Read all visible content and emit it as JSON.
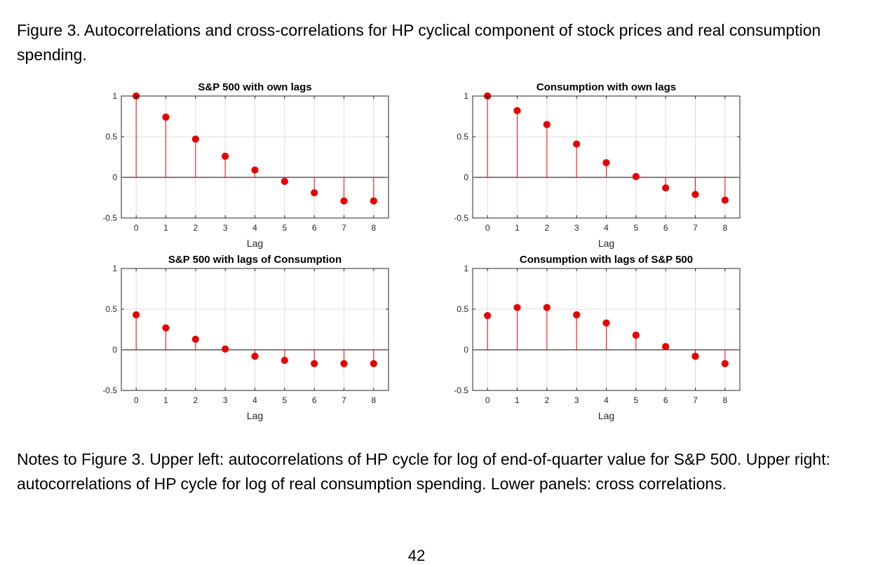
{
  "caption": "Figure 3. Autocorrelations and cross-correlations for HP cyclical component of stock prices and real consumption spending.",
  "notes": "Notes to Figure 3. Upper left: autocorrelations of HP cycle for log of end-of-quarter value for S&P 500. Upper right: autocorrelations of HP cycle for log of real consumption spending.  Lower panels: cross correlations.",
  "page_number": "42",
  "colors": {
    "stem": "#ff0000",
    "marker": "#e60000",
    "grid": "#dcdcdc",
    "axis": "#262626"
  },
  "chart_data": [
    {
      "type": "stem",
      "title": "S&P 500 with own lags",
      "xlabel": "Lag",
      "ylabel": "",
      "x": [
        0,
        1,
        2,
        3,
        4,
        5,
        6,
        7,
        8
      ],
      "values": [
        1.0,
        0.74,
        0.47,
        0.26,
        0.09,
        -0.05,
        -0.19,
        -0.29,
        -0.29
      ],
      "xlim": [
        -0.5,
        8.5
      ],
      "ylim": [
        -0.5,
        1
      ],
      "xticks": [
        "0",
        "1",
        "2",
        "3",
        "4",
        "5",
        "6",
        "7",
        "8"
      ],
      "yticks": [
        "1",
        "0.5",
        "0",
        "-0.5"
      ],
      "grid": true
    },
    {
      "type": "stem",
      "title": "Consumption with own lags",
      "xlabel": "Lag",
      "ylabel": "",
      "x": [
        0,
        1,
        2,
        3,
        4,
        5,
        6,
        7,
        8
      ],
      "values": [
        1.0,
        0.82,
        0.65,
        0.41,
        0.18,
        0.01,
        -0.13,
        -0.21,
        -0.28
      ],
      "xlim": [
        -0.5,
        8.5
      ],
      "ylim": [
        -0.5,
        1
      ],
      "xticks": [
        "0",
        "1",
        "2",
        "3",
        "4",
        "5",
        "6",
        "7",
        "8"
      ],
      "yticks": [
        "1",
        "0.5",
        "0",
        "-0.5"
      ],
      "grid": true
    },
    {
      "type": "stem",
      "title": "S&P 500 with lags of Consumption",
      "xlabel": "Lag",
      "ylabel": "",
      "x": [
        0,
        1,
        2,
        3,
        4,
        5,
        6,
        7,
        8
      ],
      "values": [
        0.43,
        0.27,
        0.13,
        0.01,
        -0.08,
        -0.13,
        -0.17,
        -0.17,
        -0.17
      ],
      "xlim": [
        -0.5,
        8.5
      ],
      "ylim": [
        -0.5,
        1
      ],
      "xticks": [
        "0",
        "1",
        "2",
        "3",
        "4",
        "5",
        "6",
        "7",
        "8"
      ],
      "yticks": [
        "1",
        "0.5",
        "0",
        "-0.5"
      ],
      "grid": true
    },
    {
      "type": "stem",
      "title": "Consumption with lags of S&P 500",
      "xlabel": "Lag",
      "ylabel": "",
      "x": [
        0,
        1,
        2,
        3,
        4,
        5,
        6,
        7,
        8
      ],
      "values": [
        0.42,
        0.52,
        0.52,
        0.43,
        0.33,
        0.18,
        0.04,
        -0.08,
        -0.17
      ],
      "xlim": [
        -0.5,
        8.5
      ],
      "ylim": [
        -0.5,
        1
      ],
      "xticks": [
        "0",
        "1",
        "2",
        "3",
        "4",
        "5",
        "6",
        "7",
        "8"
      ],
      "yticks": [
        "1",
        "0.5",
        "0",
        "-0.5"
      ],
      "grid": true
    }
  ]
}
